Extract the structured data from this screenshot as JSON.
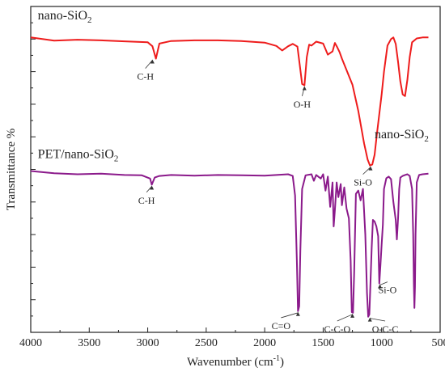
{
  "chart_data": {
    "type": "line",
    "title": "",
    "xlabel": "Wavenumber (cm",
    "xlabel_sup": "-1",
    "xlabel_tail": ")",
    "ylabel": "Transmittance %",
    "xlim": [
      4000,
      500
    ],
    "ylim": [
      0,
      100
    ],
    "x_ticks": [
      4000,
      3500,
      3000,
      2500,
      2000,
      1500,
      1000,
      500
    ],
    "x_tick_labels": [
      "4000",
      "3500",
      "3000",
      "2500",
      "2000",
      "1500",
      "1000",
      "500"
    ],
    "y_tick_labels_shown": false,
    "grid": false,
    "series": [
      {
        "name": "nano-SiO",
        "name_sub": "2",
        "color": "#ee1c1c",
        "x": [
          4000,
          3800,
          3600,
          3400,
          3200,
          3000,
          2960,
          2930,
          2900,
          2800,
          2600,
          2400,
          2200,
          2000,
          1900,
          1850,
          1800,
          1760,
          1720,
          1700,
          1680,
          1660,
          1640,
          1620,
          1600,
          1560,
          1500,
          1460,
          1420,
          1400,
          1380,
          1360,
          1340,
          1300,
          1250,
          1200,
          1150,
          1120,
          1100,
          1080,
          1060,
          1040,
          1020,
          1000,
          980,
          950,
          920,
          900,
          880,
          860,
          840,
          820,
          800,
          780,
          760,
          740,
          700,
          650,
          600
        ],
        "y": [
          90.5,
          89.5,
          89.8,
          89.6,
          89.3,
          89.0,
          87.8,
          84.0,
          88.6,
          89.4,
          89.6,
          89.6,
          89.4,
          88.9,
          87.9,
          86.5,
          87.8,
          88.5,
          87.7,
          82.0,
          76.2,
          75.8,
          84.5,
          88.3,
          88.0,
          89.2,
          88.6,
          85.2,
          86.2,
          88.8,
          87.5,
          86.0,
          84.0,
          80.5,
          76.0,
          68.0,
          58.0,
          53.0,
          51.2,
          51.5,
          54.5,
          61.0,
          67.0,
          73.0,
          80.0,
          88.0,
          90.0,
          90.5,
          88.5,
          83.0,
          77.0,
          73.0,
          72.5,
          77.5,
          84.5,
          89.0,
          90.2,
          90.5,
          90.5
        ]
      },
      {
        "name": "PET/nano-SiO",
        "name_sub": "2",
        "color": "#8b1a8b",
        "x": [
          4000,
          3800,
          3600,
          3400,
          3200,
          3050,
          2980,
          2965,
          2940,
          2900,
          2800,
          2600,
          2400,
          2200,
          2000,
          1800,
          1760,
          1740,
          1725,
          1715,
          1705,
          1695,
          1680,
          1650,
          1600,
          1580,
          1560,
          1520,
          1500,
          1480,
          1460,
          1440,
          1420,
          1410,
          1400,
          1385,
          1370,
          1350,
          1340,
          1320,
          1300,
          1280,
          1265,
          1255,
          1245,
          1235,
          1220,
          1200,
          1180,
          1160,
          1140,
          1125,
          1115,
          1105,
          1095,
          1085,
          1075,
          1060,
          1045,
          1030,
          1020,
          1010,
          1000,
          990,
          980,
          960,
          940,
          920,
          900,
          880,
          870,
          860,
          850,
          840,
          820,
          800,
          780,
          760,
          740,
          730,
          725,
          720,
          715,
          710,
          700,
          680,
          650,
          600
        ],
        "y": [
          49.5,
          48.8,
          48.5,
          48.7,
          48.3,
          48.2,
          47.2,
          45.3,
          47.5,
          48.0,
          48.3,
          48.1,
          48.3,
          48.2,
          48.1,
          48.5,
          48.0,
          42.0,
          22.0,
          6.5,
          8.0,
          25.0,
          44.0,
          48.2,
          48.5,
          46.5,
          48.3,
          47.2,
          48.5,
          43.5,
          47.8,
          38.5,
          46.0,
          32.5,
          37.5,
          46.0,
          41.5,
          45.5,
          39.0,
          44.5,
          38.0,
          35.0,
          22.0,
          6.2,
          6.0,
          18.0,
          42.5,
          43.5,
          40.5,
          44.0,
          30.0,
          12.0,
          4.8,
          5.5,
          16.0,
          26.0,
          34.5,
          34.0,
          32.5,
          29.5,
          15.0,
          21.0,
          27.0,
          33.0,
          44.0,
          47.3,
          47.8,
          47.0,
          40.0,
          34.5,
          28.5,
          35.0,
          44.0,
          47.5,
          48.0,
          48.3,
          48.5,
          48.0,
          44.0,
          30.0,
          15.0,
          7.5,
          14.0,
          30.0,
          46.0,
          48.3,
          48.5,
          48.7
        ]
      }
    ],
    "annotations": [
      {
        "text": "C-H",
        "x": 2960,
        "y": 84.0,
        "label_x": 3020,
        "label_y": 78.5
      },
      {
        "text": "O-H",
        "x": 1660,
        "y": 75.8,
        "label_x": 1680,
        "label_y": 70.0
      },
      {
        "text": "Si-O",
        "x": 1095,
        "y": 51.2,
        "label_x": 1160,
        "label_y": 46.0
      },
      {
        "text": "C-H",
        "x": 2965,
        "y": 45.3,
        "label_x": 3010,
        "label_y": 40.5
      },
      {
        "text": "C=O",
        "x": 1715,
        "y": 6.5,
        "label_x": 1860,
        "label_y": 2.0
      },
      {
        "text": "C-C-O",
        "x": 1250,
        "y": 6.0,
        "label_x": 1380,
        "label_y": 1.0
      },
      {
        "text": "O-C-C",
        "x": 1100,
        "y": 4.8,
        "label_x": 970,
        "label_y": 1.0
      },
      {
        "text": "Si-O",
        "x": 1015,
        "y": 15.0,
        "label_x": 950,
        "label_y": 13.0
      }
    ],
    "series_labels": [
      {
        "text": "nano-SiO",
        "sub": "2",
        "anchor_x": 3940,
        "anchor_y": 96.0
      },
      {
        "text": "nano-SiO",
        "sub": "2",
        "anchor_x": 1060,
        "anchor_y": 59.5
      },
      {
        "text": "PET/nano-SiO",
        "sub": "2",
        "anchor_x": 3940,
        "anchor_y": 53.5
      }
    ]
  }
}
